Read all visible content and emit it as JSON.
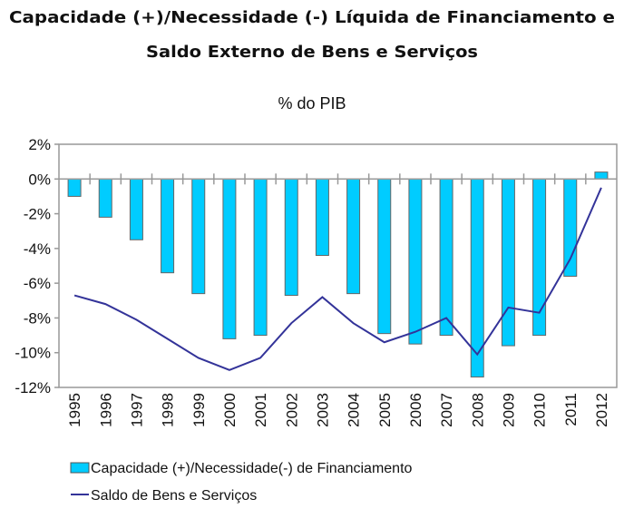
{
  "chart_data": {
    "type": "bar+line",
    "title": "Capacidade (+)/Necessidade (-) Líquida de Financiamento e Saldo Externo de Bens e Serviços",
    "title_lines": [
      "Capacidade (+)/Necessidade (-) Líquida de Financiamento e",
      "Saldo Externo de Bens e Serviços"
    ],
    "subtitle": "% do PIB",
    "categories": [
      "1995",
      "1996",
      "1997",
      "1998",
      "1999",
      "2000",
      "2001",
      "2002",
      "2003",
      "2004",
      "2005",
      "2006",
      "2007",
      "2008",
      "2009",
      "2010",
      "2011",
      "2012"
    ],
    "ylim": [
      -12,
      2
    ],
    "yticks": [
      2,
      0,
      -2,
      -4,
      -6,
      -8,
      -10,
      -12
    ],
    "ytick_labels": [
      "2%",
      "0%",
      "-2%",
      "-4%",
      "-6%",
      "-8%",
      "-10%",
      "-12%"
    ],
    "grid": false,
    "legend_position": "bottom",
    "series": [
      {
        "name": "Capacidade (+)/Necessidade(-) de Financiamento",
        "type": "bar",
        "color": "#00CCFF",
        "values": [
          -1.0,
          -2.2,
          -3.5,
          -5.4,
          -6.6,
          -9.2,
          -9.0,
          -6.7,
          -4.4,
          -6.6,
          -8.9,
          -9.5,
          -9.0,
          -11.4,
          -9.6,
          -9.0,
          -5.6,
          0.4
        ]
      },
      {
        "name": "Saldo de Bens e Serviços",
        "type": "line",
        "color": "#333399",
        "values": [
          -6.7,
          -7.2,
          -8.1,
          -9.2,
          -10.3,
          -11.0,
          -10.3,
          -8.3,
          -6.8,
          -8.3,
          -9.4,
          -8.8,
          -8.0,
          -10.1,
          -7.4,
          -7.7,
          -4.6,
          -0.5
        ]
      }
    ]
  }
}
